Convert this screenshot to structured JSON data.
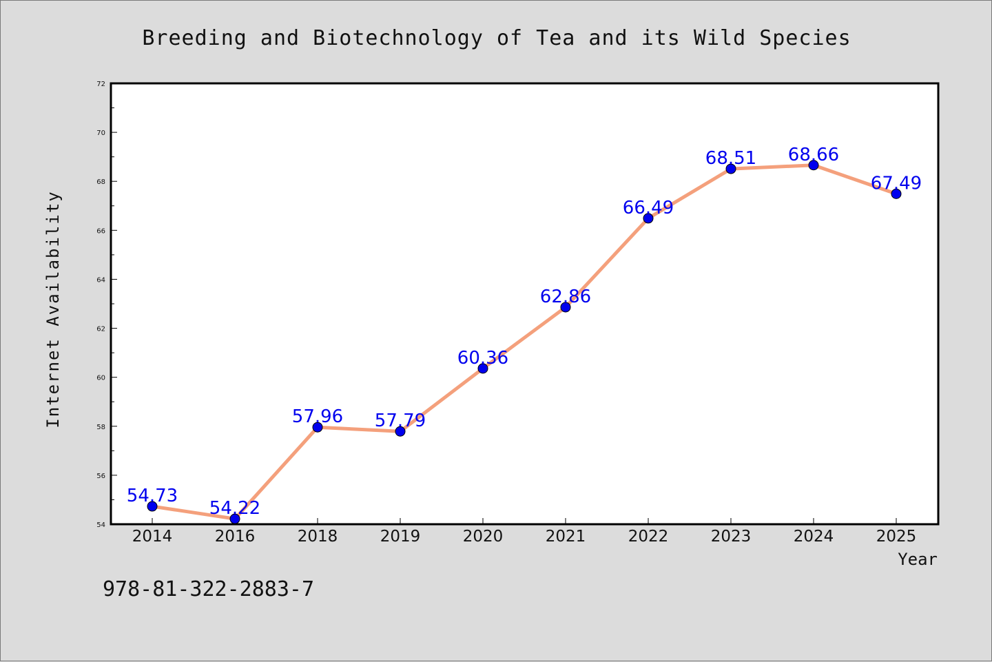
{
  "chart_data": {
    "type": "line",
    "title": "Breeding and Biotechnology of Tea and its Wild Species",
    "xlabel": "Year",
    "ylabel": "Internet Availability",
    "categories": [
      "2014",
      "2016",
      "2018",
      "2019",
      "2020",
      "2021",
      "2022",
      "2023",
      "2024",
      "2025"
    ],
    "series": [
      {
        "values": [
          54.73,
          54.22,
          57.96,
          57.79,
          60.36,
          62.86,
          66.49,
          68.51,
          68.66,
          67.49
        ],
        "labels": [
          "54.73",
          "54.22",
          "57.96",
          "57.79",
          "60.36",
          "62.86",
          "66.49",
          "68.51",
          "68.66",
          "67.49"
        ],
        "line_color": "#f4a07c",
        "marker_color": "#0000ee"
      }
    ],
    "ylim": [
      54,
      72
    ],
    "yticks": [
      "54",
      "56",
      "58",
      "60",
      "62",
      "64",
      "66",
      "68",
      "70",
      "72"
    ],
    "grid": false,
    "legend": "none",
    "data_label_color": "#0000ee"
  },
  "footer": {
    "isbn": "978-81-322-2883-7"
  }
}
